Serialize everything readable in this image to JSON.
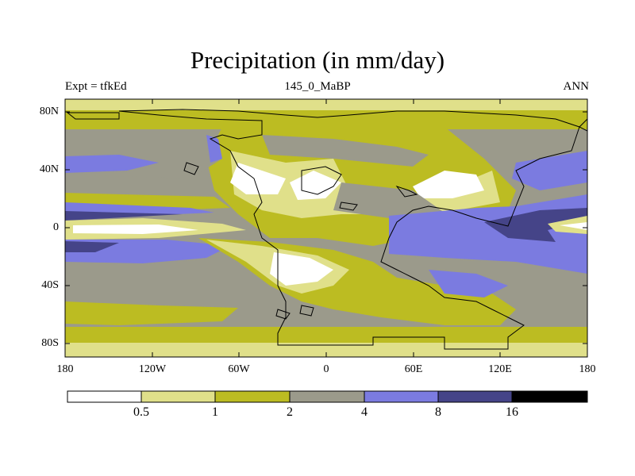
{
  "title": "Precipitation (in mm/day)",
  "subtitle_left": "Expt = tfkEd",
  "subtitle_center": "145_0_MaBP",
  "subtitle_right": "ANN",
  "map": {
    "lat_ticks": [
      "80N",
      "40N",
      "0",
      "40S",
      "80S"
    ],
    "lon_ticks": [
      "180",
      "120W",
      "60W",
      "0",
      "60E",
      "120E",
      "180"
    ],
    "lon_range": [
      -180,
      180
    ],
    "lat_range": [
      -90,
      90
    ]
  },
  "colorbar": {
    "labels": [
      "0.5",
      "1",
      "2",
      "4",
      "8",
      "16"
    ],
    "colors": [
      "#ffffff",
      "#e0e08a",
      "#bcbc22",
      "#9b9a8b",
      "#7b7be0",
      "#454488",
      "#000000"
    ]
  },
  "palette": {
    "dry": "#ffffff",
    "light": "#e0e08a",
    "olive": "#bcbc22",
    "gray": "#9b9a8b",
    "blue": "#7b7be0",
    "dark": "#454488"
  }
}
